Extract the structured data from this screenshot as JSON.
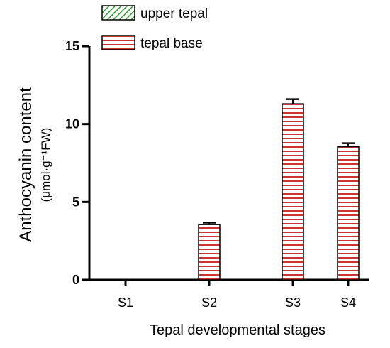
{
  "chart_data": {
    "type": "bar",
    "categories": [
      "S1",
      "S2",
      "S3",
      "S4"
    ],
    "series": [
      {
        "name": "upper tepal",
        "values": [
          0.03,
          0,
          0.03,
          0.03
        ],
        "errors": [
          0,
          0,
          0,
          0
        ],
        "color": "#2ca02c",
        "pattern": "diagonal-hatch"
      },
      {
        "name": "tepal base",
        "values": [
          0,
          3.55,
          11.3,
          8.55
        ],
        "errors": [
          0,
          0.12,
          0.3,
          0.22
        ],
        "color": "#cc3333",
        "pattern": "horizontal-stripes"
      }
    ],
    "ylabel": "Anthocyanin content",
    "ylabel_unit": "(μmol·g⁻¹FW)",
    "xlabel": "Tepal developmental stages",
    "ylim": [
      0,
      15
    ],
    "yticks": [
      0,
      5,
      10,
      15
    ],
    "legend_position": "top"
  }
}
